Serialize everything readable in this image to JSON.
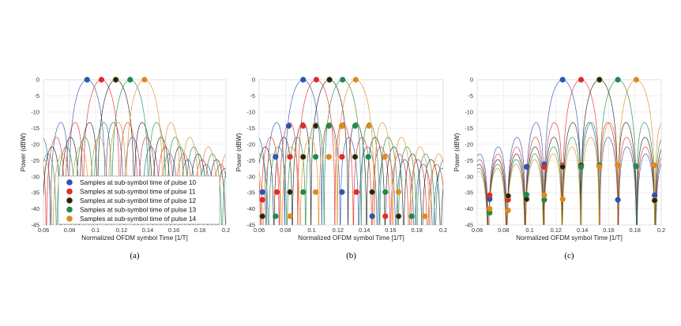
{
  "chart_data": [
    {
      "type": "line",
      "panel_label": "(a)",
      "xlabel": "Normalized OFDM symbol Time [1/T]",
      "ylabel": "Power (dBW)",
      "xlim": [
        0.06,
        0.2
      ],
      "ylim": [
        -45,
        0
      ],
      "xticks": [
        "0.06",
        "0.08",
        "0.1",
        "0.12",
        "0.14",
        "0.16",
        "0.18",
        "0.2"
      ],
      "yticks": [
        "0",
        "-5",
        "-10",
        "-15",
        "-20",
        "-25",
        "-30",
        "-35",
        "-40",
        "-45"
      ],
      "grid": true,
      "legend_position": "bottom-left",
      "legend": [
        "Samples at sub-symbol time of pulse 10",
        "Samples at sub-symbol time of pulse 11",
        "Samples at sub-symbol time of pulse 12",
        "Samples at sub-symbol time of pulse 13",
        "Samples at sub-symbol time of pulse 14"
      ],
      "main_lobe_width": 0.0141,
      "series": [
        {
          "peak_x": 0.0935,
          "color": "#2e55b0"
        },
        {
          "peak_x": 0.1045,
          "color": "#e32a2a"
        },
        {
          "peak_x": 0.1155,
          "color": "#222222"
        },
        {
          "peak_x": 0.1265,
          "color": "#1f8a4a"
        },
        {
          "peak_x": 0.1375,
          "color": "#e08a1a"
        }
      ],
      "markers": [
        {
          "series": 0,
          "points": [
            [
              0.0935,
              0
            ]
          ]
        },
        {
          "series": 1,
          "points": [
            [
              0.1045,
              0
            ]
          ]
        },
        {
          "series": 2,
          "points": [
            [
              0.1155,
              0
            ]
          ]
        },
        {
          "series": 3,
          "points": [
            [
              0.1265,
              0
            ]
          ]
        },
        {
          "series": 4,
          "points": [
            [
              0.1375,
              0
            ]
          ]
        }
      ]
    },
    {
      "type": "line",
      "panel_label": "(b)",
      "xlabel": "Normalized OFDM symbol Time [1/T]",
      "ylabel": "Power (dBW)",
      "xlim": [
        0.06,
        0.2
      ],
      "ylim": [
        -45,
        0
      ],
      "xticks": [
        "0.06",
        "0.08",
        "0.1",
        "0.12",
        "0.14",
        "0.16",
        "0.18",
        "0.2"
      ],
      "yticks": [
        "0",
        "-5",
        "-10",
        "-15",
        "-20",
        "-25",
        "-30",
        "-35",
        "-40",
        "-45"
      ],
      "grid": true,
      "main_lobe_width": 0.0141,
      "series": [
        {
          "peak_x": 0.0935,
          "color": "#2e55b0"
        },
        {
          "peak_x": 0.1035,
          "color": "#e32a2a"
        },
        {
          "peak_x": 0.1135,
          "color": "#222222"
        },
        {
          "peak_x": 0.1235,
          "color": "#1f8a4a"
        },
        {
          "peak_x": 0.1335,
          "color": "#e08a1a"
        }
      ],
      "markers": [
        {
          "series": 0,
          "points": [
            [
              0.0935,
              0
            ],
            [
              0.0825,
              -14.3
            ],
            [
              0.0725,
              -23.9
            ],
            [
              0.0625,
              -34.8
            ],
            [
              0.103,
              -14.3
            ],
            [
              0.113,
              -23.9
            ],
            [
              0.123,
              -34.8
            ],
            [
              0.146,
              -42.3
            ]
          ]
        },
        {
          "series": 1,
          "points": [
            [
              0.1035,
              0
            ],
            [
              0.0935,
              -14.3
            ],
            [
              0.0835,
              -23.9
            ],
            [
              0.0735,
              -34.8
            ],
            [
              0.0625,
              -37.2
            ],
            [
              0.113,
              -14.3
            ],
            [
              0.123,
              -23.9
            ],
            [
              0.134,
              -34.8
            ],
            [
              0.156,
              -42.3
            ]
          ]
        },
        {
          "series": 2,
          "points": [
            [
              0.1135,
              0
            ],
            [
              0.103,
              -14.3
            ],
            [
              0.0935,
              -23.9
            ],
            [
              0.0835,
              -34.8
            ],
            [
              0.0625,
              -42.3
            ],
            [
              0.123,
              -14.3
            ],
            [
              0.133,
              -23.9
            ],
            [
              0.146,
              -34.8
            ],
            [
              0.166,
              -42.3
            ]
          ]
        },
        {
          "series": 3,
          "points": [
            [
              0.1235,
              0
            ],
            [
              0.113,
              -14.3
            ],
            [
              0.103,
              -23.9
            ],
            [
              0.0935,
              -34.8
            ],
            [
              0.0725,
              -42.3
            ],
            [
              0.133,
              -14.3
            ],
            [
              0.143,
              -23.9
            ],
            [
              0.156,
              -34.8
            ],
            [
              0.176,
              -42.3
            ]
          ]
        },
        {
          "series": 4,
          "points": [
            [
              0.1335,
              0
            ],
            [
              0.123,
              -14.3
            ],
            [
              0.113,
              -23.9
            ],
            [
              0.103,
              -34.8
            ],
            [
              0.0835,
              -42.3
            ],
            [
              0.1435,
              -14.3
            ],
            [
              0.1555,
              -23.9
            ],
            [
              0.166,
              -34.8
            ],
            [
              0.186,
              -42.3
            ]
          ]
        }
      ]
    },
    {
      "type": "line",
      "panel_label": "(c)",
      "xlabel": "Normalized OFDM symbol Time [1/T]",
      "ylabel": "Power (dBW)",
      "xlim": [
        0.06,
        0.2
      ],
      "ylim": [
        -45,
        0
      ],
      "xticks": [
        "0.06",
        "0.08",
        "0.1",
        "0.12",
        "0.14",
        "0.16",
        "0.18",
        "0.2"
      ],
      "yticks": [
        "0",
        "-5",
        "-10",
        "-15",
        "-20",
        "-25",
        "-30",
        "-35",
        "-40",
        "-45"
      ],
      "grid": true,
      "main_lobe_width": 0.0141,
      "series": [
        {
          "peak_x": 0.125,
          "color": "#2e55b0"
        },
        {
          "peak_x": 0.139,
          "color": "#e32a2a"
        },
        {
          "peak_x": 0.153,
          "color": "#222222"
        },
        {
          "peak_x": 0.167,
          "color": "#1f8a4a"
        },
        {
          "peak_x": 0.181,
          "color": "#e08a1a"
        }
      ],
      "markers": [
        {
          "series": 0,
          "points": [
            [
              0.125,
              0
            ],
            [
              0.0975,
              -27
            ],
            [
              0.111,
              -26.2
            ],
            [
              0.139,
              -26.5
            ],
            [
              0.167,
              -37.2
            ],
            [
              0.195,
              -35.8
            ],
            [
              0.0695,
              -37.0
            ]
          ]
        },
        {
          "series": 1,
          "points": [
            [
              0.139,
              0
            ],
            [
              0.111,
              -27
            ],
            [
              0.125,
              -26.5
            ],
            [
              0.153,
              -26.5
            ],
            [
              0.0695,
              -35.8
            ],
            [
              0.0835,
              -37.2
            ],
            [
              0.195,
              -37.2
            ]
          ]
        },
        {
          "series": 2,
          "points": [
            [
              0.153,
              0
            ],
            [
              0.125,
              -27
            ],
            [
              0.139,
              -26.5
            ],
            [
              0.167,
              -26.5
            ],
            [
              0.0835,
              -36.0
            ],
            [
              0.0975,
              -37.0
            ],
            [
              0.195,
              -37.4
            ]
          ]
        },
        {
          "series": 3,
          "points": [
            [
              0.167,
              0
            ],
            [
              0.139,
              -27
            ],
            [
              0.153,
              -26.5
            ],
            [
              0.181,
              -26.8
            ],
            [
              0.0975,
              -35.6
            ],
            [
              0.111,
              -37.2
            ],
            [
              0.0695,
              -41.2
            ]
          ]
        },
        {
          "series": 4,
          "points": [
            [
              0.181,
              0
            ],
            [
              0.153,
              -27
            ],
            [
              0.167,
              -26.5
            ],
            [
              0.195,
              -26.5
            ],
            [
              0.111,
              -35.8
            ],
            [
              0.125,
              -37.0
            ],
            [
              0.0835,
              -40.5
            ],
            [
              0.0695,
              -40.0
            ]
          ]
        }
      ]
    }
  ]
}
